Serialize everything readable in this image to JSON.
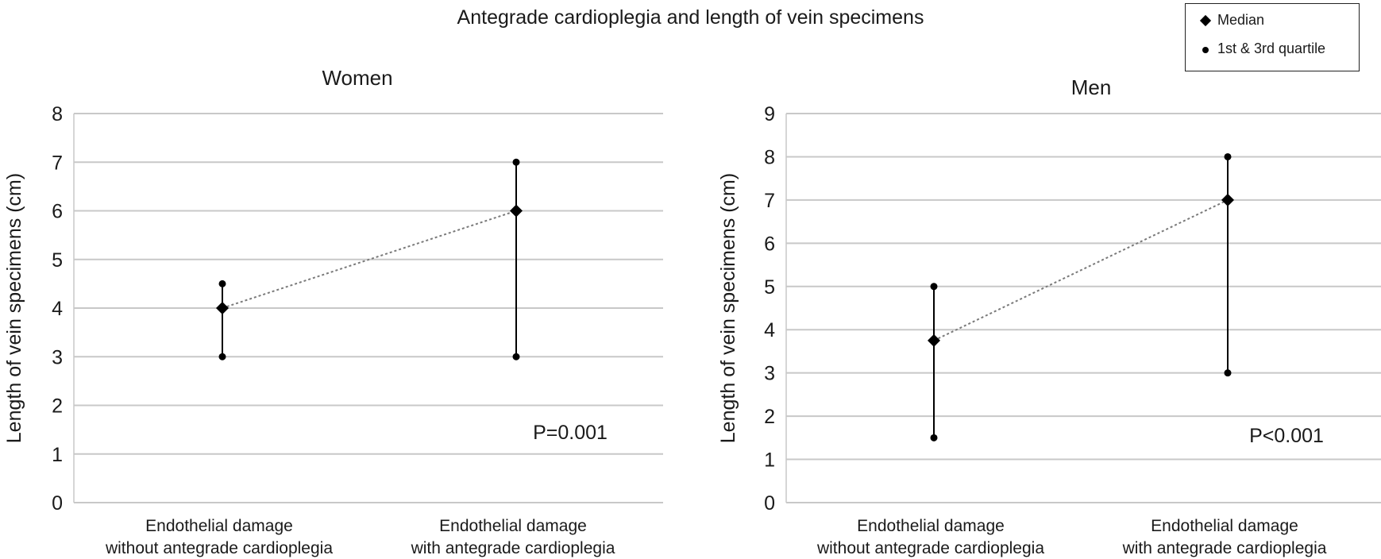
{
  "title": "Antegrade cardioplegia and length of vein specimens",
  "legend": {
    "items": [
      {
        "label": "Median",
        "marker": "diamond"
      },
      {
        "label": "1st & 3rd quartile",
        "marker": "dot"
      }
    ]
  },
  "colors": {
    "marker": "#000000",
    "gridline": "#c8c8c8",
    "connector": "#7a7a7a"
  },
  "chart_data": [
    {
      "type": "scatter",
      "title": "Women",
      "xlabel": "",
      "ylabel": "Length of vein specimens (cm)",
      "ylim": [
        0,
        8
      ],
      "yticks": [
        0,
        1,
        2,
        3,
        4,
        5,
        6,
        7,
        8
      ],
      "grid": true,
      "categories": [
        [
          "Endothelial damage",
          "without antegrade cardioplegia"
        ],
        [
          "Endothelial damage",
          "with antegrade cardioplegia"
        ]
      ],
      "median": [
        4,
        6
      ],
      "q1": [
        3,
        3
      ],
      "q3": [
        4.5,
        7
      ],
      "annotation": "P=0.001"
    },
    {
      "type": "scatter",
      "title": "Men",
      "xlabel": "",
      "ylabel": "Length of vein specimens (cm)",
      "ylim": [
        0,
        9
      ],
      "yticks": [
        0,
        1,
        2,
        3,
        4,
        5,
        6,
        7,
        8,
        9
      ],
      "grid": true,
      "categories": [
        [
          "Endothelial damage",
          "without antegrade cardioplegia"
        ],
        [
          "Endothelial damage",
          "with antegrade cardioplegia"
        ]
      ],
      "median": [
        3.75,
        7
      ],
      "q1": [
        1.5,
        3
      ],
      "q3": [
        5,
        8
      ],
      "annotation": "P<0.001"
    }
  ]
}
